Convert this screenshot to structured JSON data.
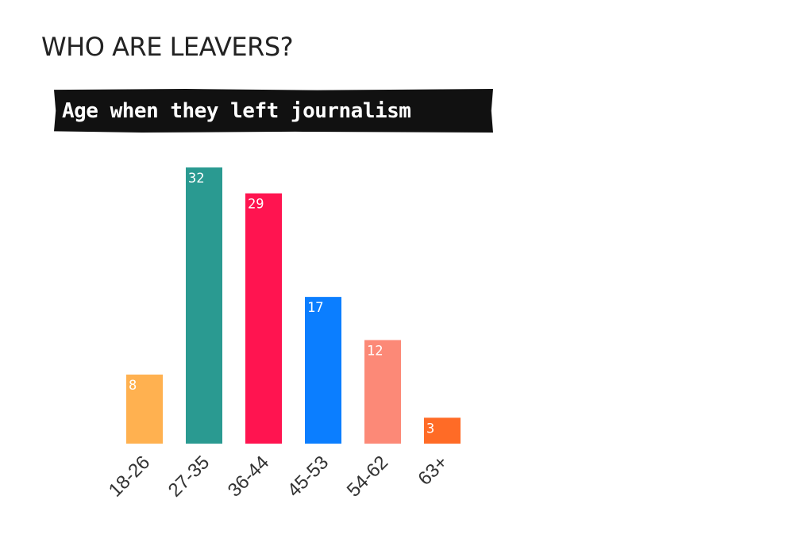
{
  "heading": "WHO ARE LEAVERS?",
  "chart_data": {
    "type": "bar",
    "title": "Age when they left journalism",
    "xlabel": "",
    "ylabel": "",
    "categories": [
      "18-26",
      "27-35",
      "36-44",
      "45-53",
      "54-62",
      "63+"
    ],
    "values": [
      8,
      32,
      29,
      17,
      12,
      3
    ],
    "colors": [
      "#FFB150",
      "#2A9A91",
      "#FF1450",
      "#0B7EFF",
      "#FC8977",
      "#FF6B26"
    ],
    "ylim": [
      0,
      32
    ],
    "grid": false,
    "legend": "none",
    "data_labels": true
  }
}
